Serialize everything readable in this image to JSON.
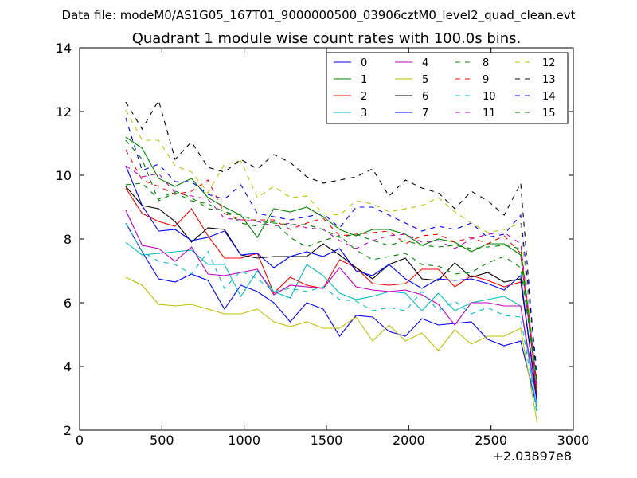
{
  "figure": {
    "suptitle": "Data file: modeM0/AS1G05_167T01_9000000500_03906cztM0_level2_quad_clean.evt"
  },
  "chart_data": {
    "type": "line",
    "title": "Quadrant 1 module wise count rates with 100.0s bins.",
    "xlabel": "",
    "ylabel": "",
    "x_offset_label": "+2.03897e8",
    "xlim": [
      0,
      3000
    ],
    "ylim": [
      2,
      14
    ],
    "grid": false,
    "legend_position": "top-right",
    "legend_columns": 4,
    "xticks": [
      "0",
      "500",
      "1000",
      "1500",
      "2000",
      "2500",
      "3000"
    ],
    "yticks": [
      "2",
      "4",
      "6",
      "8",
      "10",
      "12",
      "14"
    ],
    "x": [
      280,
      380,
      480,
      580,
      680,
      780,
      880,
      980,
      1080,
      1180,
      1280,
      1380,
      1480,
      1580,
      1680,
      1780,
      1880,
      1980,
      2080,
      2180,
      2280,
      2380,
      2480,
      2580,
      2680,
      2780
    ],
    "series": [
      {
        "name": "0",
        "color": "#0000ff",
        "style": "solid",
        "values": [
          8.5,
          7.6,
          6.75,
          6.65,
          6.9,
          6.7,
          5.8,
          6.55,
          6.35,
          6.0,
          5.4,
          6.0,
          5.8,
          4.95,
          5.6,
          5.55,
          5.1,
          4.95,
          5.5,
          5.3,
          5.35,
          5.4,
          4.85,
          4.65,
          4.8,
          2.7
        ]
      },
      {
        "name": "1",
        "color": "#008000",
        "style": "solid",
        "values": [
          11.2,
          10.85,
          9.9,
          9.65,
          9.9,
          9.3,
          9.0,
          8.75,
          8.05,
          8.95,
          8.85,
          9.0,
          8.7,
          8.3,
          8.1,
          8.3,
          8.3,
          8.15,
          7.8,
          8.0,
          7.9,
          7.6,
          7.85,
          7.85,
          7.5,
          3.2
        ]
      },
      {
        "name": "2",
        "color": "#ff0000",
        "style": "solid",
        "values": [
          9.6,
          8.8,
          8.55,
          8.4,
          8.95,
          8.1,
          7.4,
          7.4,
          7.55,
          6.3,
          6.8,
          6.55,
          6.45,
          7.35,
          7.1,
          6.6,
          6.55,
          6.6,
          7.05,
          7.05,
          6.5,
          6.85,
          6.7,
          6.5,
          6.65,
          3.1
        ]
      },
      {
        "name": "3",
        "color": "#00bfbf",
        "style": "solid",
        "values": [
          7.9,
          7.5,
          7.55,
          7.6,
          7.65,
          7.2,
          7.2,
          6.2,
          7.0,
          6.35,
          6.15,
          7.2,
          6.85,
          6.3,
          6.1,
          6.2,
          6.35,
          6.3,
          5.75,
          6.3,
          5.75,
          6.0,
          6.1,
          6.2,
          5.9,
          2.6
        ]
      },
      {
        "name": "4",
        "color": "#bf00bf",
        "style": "solid",
        "values": [
          8.9,
          7.8,
          7.7,
          7.3,
          7.75,
          6.9,
          6.85,
          6.95,
          7.05,
          6.25,
          6.55,
          6.5,
          6.45,
          7.1,
          6.5,
          6.4,
          6.35,
          6.4,
          6.25,
          5.95,
          5.3,
          6.0,
          6.0,
          5.9,
          5.9,
          2.9
        ]
      },
      {
        "name": "5",
        "color": "#bfbf00",
        "style": "solid",
        "values": [
          6.8,
          6.55,
          5.95,
          5.9,
          5.95,
          5.8,
          5.65,
          5.65,
          5.8,
          5.4,
          5.25,
          5.4,
          5.2,
          5.2,
          5.55,
          4.8,
          5.3,
          4.8,
          5.05,
          4.5,
          5.15,
          4.7,
          4.95,
          4.95,
          5.2,
          2.25
        ]
      },
      {
        "name": "6",
        "color": "#000000",
        "style": "solid",
        "values": [
          9.65,
          9.05,
          8.95,
          8.55,
          7.9,
          8.35,
          8.3,
          7.5,
          7.4,
          7.45,
          7.45,
          7.45,
          7.85,
          7.5,
          7.1,
          6.75,
          7.2,
          7.4,
          6.75,
          6.7,
          7.25,
          6.8,
          6.95,
          6.65,
          6.75,
          2.9
        ]
      },
      {
        "name": "7",
        "color": "#0000ff",
        "style": "solid",
        "values": [
          10.3,
          9.05,
          8.25,
          8.3,
          7.95,
          8.05,
          8.25,
          7.5,
          7.55,
          7.1,
          7.45,
          7.6,
          7.45,
          7.7,
          7.0,
          6.85,
          7.2,
          6.75,
          6.45,
          6.75,
          6.7,
          6.75,
          6.6,
          6.4,
          6.85,
          2.85
        ]
      },
      {
        "name": "8",
        "color": "#008000",
        "style": "dashed",
        "values": [
          9.7,
          9.75,
          9.25,
          9.5,
          9.3,
          8.95,
          8.9,
          8.5,
          8.4,
          8.55,
          8.05,
          7.75,
          7.95,
          8.1,
          7.65,
          7.35,
          7.45,
          7.55,
          7.2,
          7.15,
          6.9,
          6.95,
          7.25,
          7.45,
          7.1,
          3.5
        ]
      },
      {
        "name": "9",
        "color": "#ff0000",
        "style": "dashed",
        "values": [
          10.8,
          9.85,
          9.65,
          9.4,
          9.5,
          9.85,
          8.8,
          8.6,
          8.6,
          8.6,
          8.3,
          8.5,
          8.65,
          8.1,
          8.15,
          8.2,
          8.25,
          7.85,
          8.1,
          8.15,
          7.9,
          8.05,
          7.85,
          8.1,
          7.55,
          3.3
        ]
      },
      {
        "name": "10",
        "color": "#00bfbf",
        "style": "dashed",
        "values": [
          8.5,
          7.6,
          7.3,
          7.2,
          6.9,
          7.6,
          6.45,
          7.0,
          6.75,
          6.35,
          6.45,
          6.35,
          6.5,
          6.1,
          6.05,
          5.75,
          5.85,
          5.75,
          6.35,
          5.75,
          6.05,
          5.65,
          5.85,
          5.6,
          5.55,
          2.5
        ]
      },
      {
        "name": "11",
        "color": "#bf00bf",
        "style": "dashed",
        "values": [
          10.3,
          9.95,
          10.05,
          9.45,
          9.35,
          9.25,
          8.65,
          8.6,
          8.55,
          8.4,
          8.5,
          8.35,
          8.3,
          7.95,
          7.7,
          7.95,
          8.1,
          8.15,
          7.9,
          7.95,
          7.7,
          8.0,
          8.15,
          8.2,
          7.85,
          3.4
        ]
      },
      {
        "name": "12",
        "color": "#bfbf00",
        "style": "dashed",
        "values": [
          12.05,
          11.1,
          11.1,
          10.3,
          10.1,
          9.45,
          10.35,
          10.45,
          9.3,
          9.65,
          9.3,
          9.35,
          8.8,
          8.75,
          9.2,
          9.1,
          8.85,
          8.95,
          9.05,
          9.3,
          8.85,
          8.5,
          8.2,
          8.3,
          8.5,
          3.3
        ]
      },
      {
        "name": "13",
        "color": "#000000",
        "style": "dashed",
        "values": [
          12.3,
          11.45,
          12.35,
          10.5,
          11.05,
          10.25,
          10.1,
          10.5,
          10.2,
          10.65,
          10.4,
          9.95,
          9.75,
          9.85,
          9.95,
          10.2,
          9.35,
          9.85,
          9.6,
          9.45,
          8.95,
          9.5,
          9.2,
          8.75,
          9.75,
          3.4
        ]
      },
      {
        "name": "14",
        "color": "#0000ff",
        "style": "dashed",
        "values": [
          11.8,
          10.15,
          10.35,
          9.8,
          9.8,
          9.4,
          9.25,
          9.7,
          8.8,
          8.7,
          8.6,
          8.7,
          8.8,
          8.35,
          9.0,
          9.0,
          8.75,
          8.5,
          8.25,
          8.4,
          8.3,
          8.5,
          8.05,
          8.15,
          8.75,
          3.8
        ]
      },
      {
        "name": "15",
        "color": "#008000",
        "style": "dashed",
        "values": [
          11.1,
          10.5,
          9.2,
          9.45,
          9.2,
          9.1,
          8.85,
          8.75,
          8.55,
          8.5,
          8.45,
          8.45,
          8.3,
          8.05,
          8.15,
          7.95,
          7.8,
          7.95,
          7.8,
          7.75,
          7.8,
          7.7,
          7.75,
          7.8,
          7.7,
          3.5
        ]
      }
    ]
  }
}
